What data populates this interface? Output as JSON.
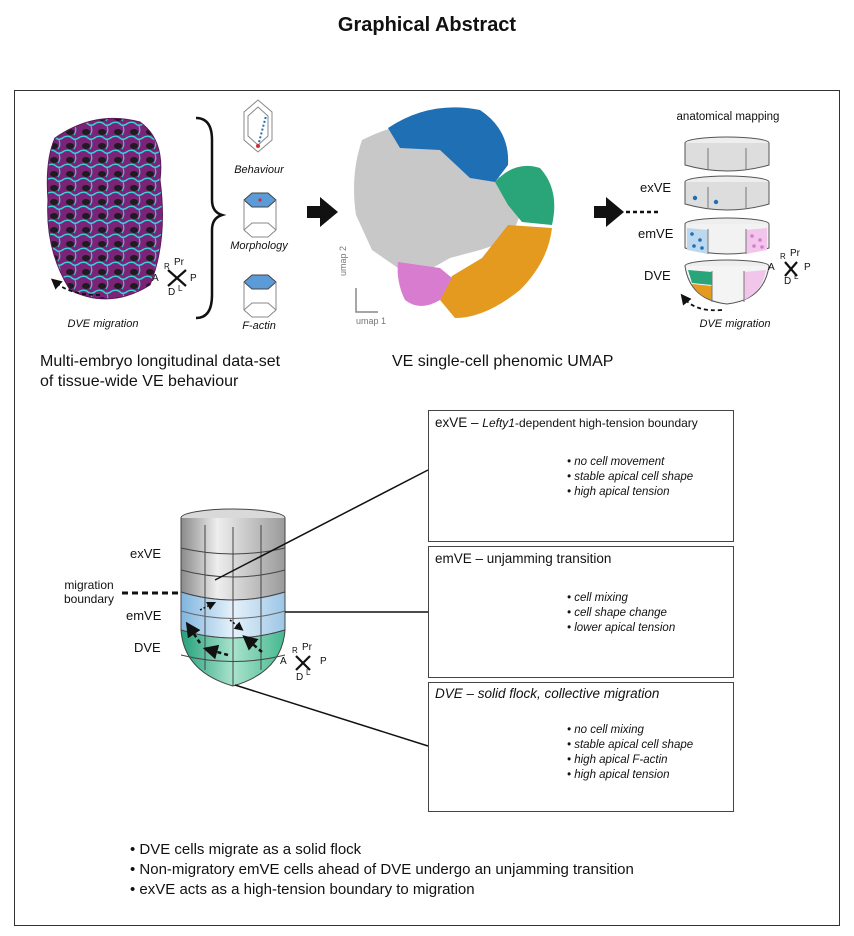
{
  "title": "Graphical Abstract",
  "top_panel": {
    "embryo_caption": "DVE migration",
    "features": [
      "Behaviour",
      "Morphology",
      "F-actin"
    ],
    "umap_axes": {
      "x": "umap 1",
      "y": "umap 2"
    },
    "mapping_title": "anatomical mapping",
    "regions": [
      "exVE",
      "emVE",
      "DVE"
    ],
    "mapping_caption": "DVE migration",
    "left_text": [
      "Multi-embryo longitudinal data-set",
      "of tissue-wide VE behaviour"
    ],
    "center_text": "VE single-cell phenomic UMAP",
    "orientation": {
      "anterior": "A",
      "posterior": "P",
      "proximal": "Pr",
      "distal": "D",
      "right": "R",
      "left": "L"
    }
  },
  "bottom_panel": {
    "embryo_labels": {
      "exve": "exVE",
      "emve": "emVE",
      "dve": "DVE",
      "boundary_line1": "migration",
      "boundary_line2": "boundary"
    },
    "boxes": [
      {
        "title_prefix": "exVE – ",
        "title_italic": "Lefty1",
        "title_suffix": "-dependent high-tension boundary",
        "bullets": [
          "• no cell movement",
          "• stable apical cell shape",
          "• high apical tension"
        ]
      },
      {
        "title_prefix": "emVE – unjamming transition",
        "title_italic": "",
        "title_suffix": "",
        "bullets": [
          "• cell mixing",
          "• cell shape change",
          "• lower apical tension"
        ]
      },
      {
        "title_prefix": "",
        "title_italic": "DVE – solid flock, collective migration",
        "title_suffix": "",
        "bullets": [
          "• no cell mixing",
          "• stable apical cell shape",
          "• high apical F-actin",
          "• high apical tension"
        ]
      }
    ]
  },
  "summary": [
    "• DVE cells migrate as a solid flock",
    "• Non-migratory emVE cells ahead of DVE undergo an unjamming transition",
    "• exVE acts as a high-tension boundary to migration"
  ],
  "colors": {
    "magenta": "#8e2a8c",
    "cyan": "#35c7d6",
    "blue": "#1f6fb5",
    "green": "#2aa57a",
    "orange": "#e39a1f",
    "pink": "#d77ccf",
    "grey": "#c8c8c8",
    "light_blue": "#cfe6f5",
    "teal": "#3cb58a"
  }
}
